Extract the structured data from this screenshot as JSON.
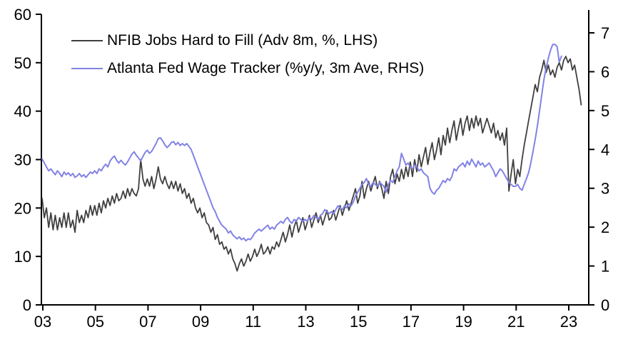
{
  "chart_data": {
    "type": "line",
    "title": "",
    "background": "#ffffff",
    "grid": false,
    "legend_position": "top-left-inside",
    "x_axis": {
      "tick_labels": [
        "03",
        "05",
        "07",
        "09",
        "11",
        "13",
        "15",
        "17",
        "19",
        "21",
        "23"
      ],
      "tick_years": [
        2003,
        2005,
        2007,
        2009,
        2011,
        2013,
        2015,
        2017,
        2019,
        2021,
        2023
      ],
      "range_years": [
        2002.95,
        2023.75
      ]
    },
    "left_axis": {
      "label": "",
      "ticks": [
        0,
        10,
        20,
        30,
        40,
        50,
        60
      ],
      "range": [
        0,
        60
      ]
    },
    "right_axis": {
      "label": "",
      "ticks": [
        0,
        1,
        2,
        3,
        4,
        5,
        6,
        7
      ],
      "range": [
        0,
        7
      ]
    },
    "axis_color": "#000000",
    "series": [
      {
        "name": "NFIB Jobs Hard to Fill (Adv 8m, %, LHS)",
        "axis": "left",
        "color": "#3f3f3f",
        "line_width": 1.8,
        "start_year": 2003,
        "points_per_year": 12,
        "values": [
          22,
          18,
          20,
          16,
          19,
          15.5,
          18.5,
          15.5,
          18,
          16,
          19,
          16,
          19,
          16,
          17.5,
          15,
          19.5,
          17,
          18.5,
          17,
          19.5,
          18,
          20.5,
          18.5,
          20.5,
          18.5,
          21,
          19,
          21.5,
          20,
          22,
          20.5,
          22.5,
          21,
          23,
          21.5,
          22,
          23.5,
          22,
          24,
          22.5,
          24,
          23,
          22.5,
          24,
          30,
          26,
          24.5,
          26,
          24.5,
          26.5,
          24,
          26,
          28.5,
          26,
          25,
          26.5,
          25,
          24,
          25.5,
          24,
          25.5,
          23.5,
          25,
          23,
          24,
          22,
          23,
          21,
          22,
          20,
          19,
          20,
          18,
          19,
          17,
          16.5,
          15,
          16,
          13.5,
          14.5,
          12.5,
          13,
          11.5,
          12,
          10.5,
          11.5,
          9.5,
          8.5,
          7,
          8.5,
          9.5,
          8,
          9,
          10.5,
          9,
          10,
          11.5,
          10,
          11,
          12.5,
          10.5,
          11,
          12,
          10.5,
          12,
          11.5,
          13,
          12,
          13.5,
          15,
          13,
          14.5,
          16.5,
          14,
          16,
          17.5,
          15,
          16.5,
          18,
          15.5,
          17,
          18.5,
          16,
          17.5,
          19,
          17,
          18.5,
          16.5,
          18,
          19.5,
          17.5,
          18,
          19.5,
          17.5,
          19,
          20.5,
          18.5,
          20,
          21.5,
          19.5,
          21,
          22.5,
          24,
          21,
          22.5,
          25.5,
          22,
          24,
          25.5,
          23.5,
          25,
          26.5,
          24,
          25.5,
          24,
          22,
          25.5,
          23,
          26.5,
          28,
          25,
          27,
          25.5,
          28,
          26,
          28.5,
          26.5,
          29.5,
          26.5,
          30,
          27.5,
          31,
          28.5,
          30.5,
          32.5,
          29,
          31.5,
          33.5,
          30,
          32,
          34.5,
          31,
          35,
          33,
          36.5,
          33.5,
          36,
          38,
          34,
          36.5,
          38.5,
          35,
          37.5,
          39,
          36,
          38.5,
          36.5,
          39,
          37,
          38.5,
          35.5,
          37,
          38.5,
          37,
          35.5,
          37.5,
          34.5,
          36,
          34,
          35.5,
          33,
          36.5,
          23.5,
          27,
          30,
          25,
          28,
          26.5,
          30,
          33,
          35.5,
          38,
          40.5,
          43,
          45.5,
          44,
          47,
          48.5,
          50.5,
          48,
          49.5,
          47.5,
          48.5,
          47,
          49,
          50,
          48.5,
          50.5,
          51.3,
          50,
          50.8,
          48.5,
          49.5,
          47,
          44.5,
          41.3
        ]
      },
      {
        "name": "Atlanta Fed Wage Tracker (%y/y, 3m Ave, RHS)",
        "axis": "right",
        "color": "#8282e6",
        "line_width": 2,
        "start_year": 2003,
        "points_per_year": 12,
        "values": [
          3.76,
          3.65,
          3.55,
          3.45,
          3.5,
          3.42,
          3.35,
          3.45,
          3.38,
          3.3,
          3.42,
          3.35,
          3.4,
          3.32,
          3.38,
          3.28,
          3.32,
          3.38,
          3.3,
          3.35,
          3.28,
          3.35,
          3.42,
          3.38,
          3.45,
          3.38,
          3.5,
          3.45,
          3.55,
          3.62,
          3.55,
          3.7,
          3.78,
          3.83,
          3.72,
          3.65,
          3.72,
          3.65,
          3.6,
          3.68,
          3.78,
          3.88,
          3.94,
          3.85,
          3.78,
          3.7,
          3.82,
          3.92,
          3.98,
          3.9,
          3.95,
          4.05,
          4.15,
          4.28,
          4.3,
          4.22,
          4.12,
          4.05,
          4.1,
          4.18,
          4.2,
          4.12,
          4.18,
          4.1,
          4.15,
          4.1,
          4.15,
          4.08,
          4.0,
          3.85,
          3.7,
          3.55,
          3.4,
          3.25,
          3.1,
          2.95,
          2.8,
          2.65,
          2.5,
          2.4,
          2.25,
          2.15,
          2.05,
          2.0,
          1.95,
          1.85,
          1.9,
          1.8,
          1.75,
          1.7,
          1.75,
          1.68,
          1.72,
          1.65,
          1.7,
          1.68,
          1.75,
          1.85,
          1.9,
          1.95,
          1.9,
          1.95,
          2.0,
          2.05,
          1.95,
          2.0,
          1.95,
          2.05,
          2.1,
          2.15,
          2.1,
          2.2,
          2.25,
          2.15,
          2.1,
          2.2,
          2.15,
          2.25,
          2.2,
          2.15,
          2.2,
          2.15,
          2.25,
          2.2,
          2.3,
          2.25,
          2.2,
          2.3,
          2.35,
          2.45,
          2.4,
          2.35,
          2.4,
          2.35,
          2.45,
          2.55,
          2.5,
          2.45,
          2.55,
          2.5,
          2.6,
          2.55,
          2.65,
          2.8,
          2.9,
          3.0,
          3.1,
          3.15,
          3.25,
          3.1,
          3.05,
          3.15,
          3.1,
          3.05,
          3.15,
          3.1,
          3.05,
          2.9,
          3.1,
          3.2,
          3.15,
          3.3,
          3.45,
          3.55,
          3.9,
          3.75,
          3.6,
          3.65,
          3.55,
          3.5,
          3.6,
          3.55,
          3.45,
          3.5,
          3.4,
          3.35,
          3.3,
          3.0,
          2.9,
          2.85,
          2.95,
          3.0,
          3.1,
          3.2,
          3.15,
          3.25,
          3.2,
          3.3,
          3.5,
          3.45,
          3.55,
          3.6,
          3.65,
          3.55,
          3.7,
          3.6,
          3.75,
          3.65,
          3.55,
          3.7,
          3.6,
          3.65,
          3.55,
          3.6,
          3.65,
          3.55,
          3.45,
          3.3,
          3.4,
          3.5,
          3.45,
          3.35,
          3.25,
          3.15,
          3.1,
          3.05,
          3.05,
          3.1,
          3.0,
          2.95,
          3.1,
          3.25,
          3.4,
          3.65,
          3.95,
          4.25,
          4.6,
          5.0,
          5.4,
          5.8,
          6.1,
          6.35,
          6.55,
          6.7,
          6.7,
          6.65,
          6.25,
          6.4
        ]
      }
    ]
  },
  "legend": {
    "items": [
      {
        "label": "NFIB Jobs Hard to Fill (Adv 8m, %, LHS)",
        "color": "#3f3f3f"
      },
      {
        "label": "Atlanta Fed Wage Tracker (%y/y, 3m Ave, RHS)",
        "color": "#8282e6"
      }
    ]
  }
}
